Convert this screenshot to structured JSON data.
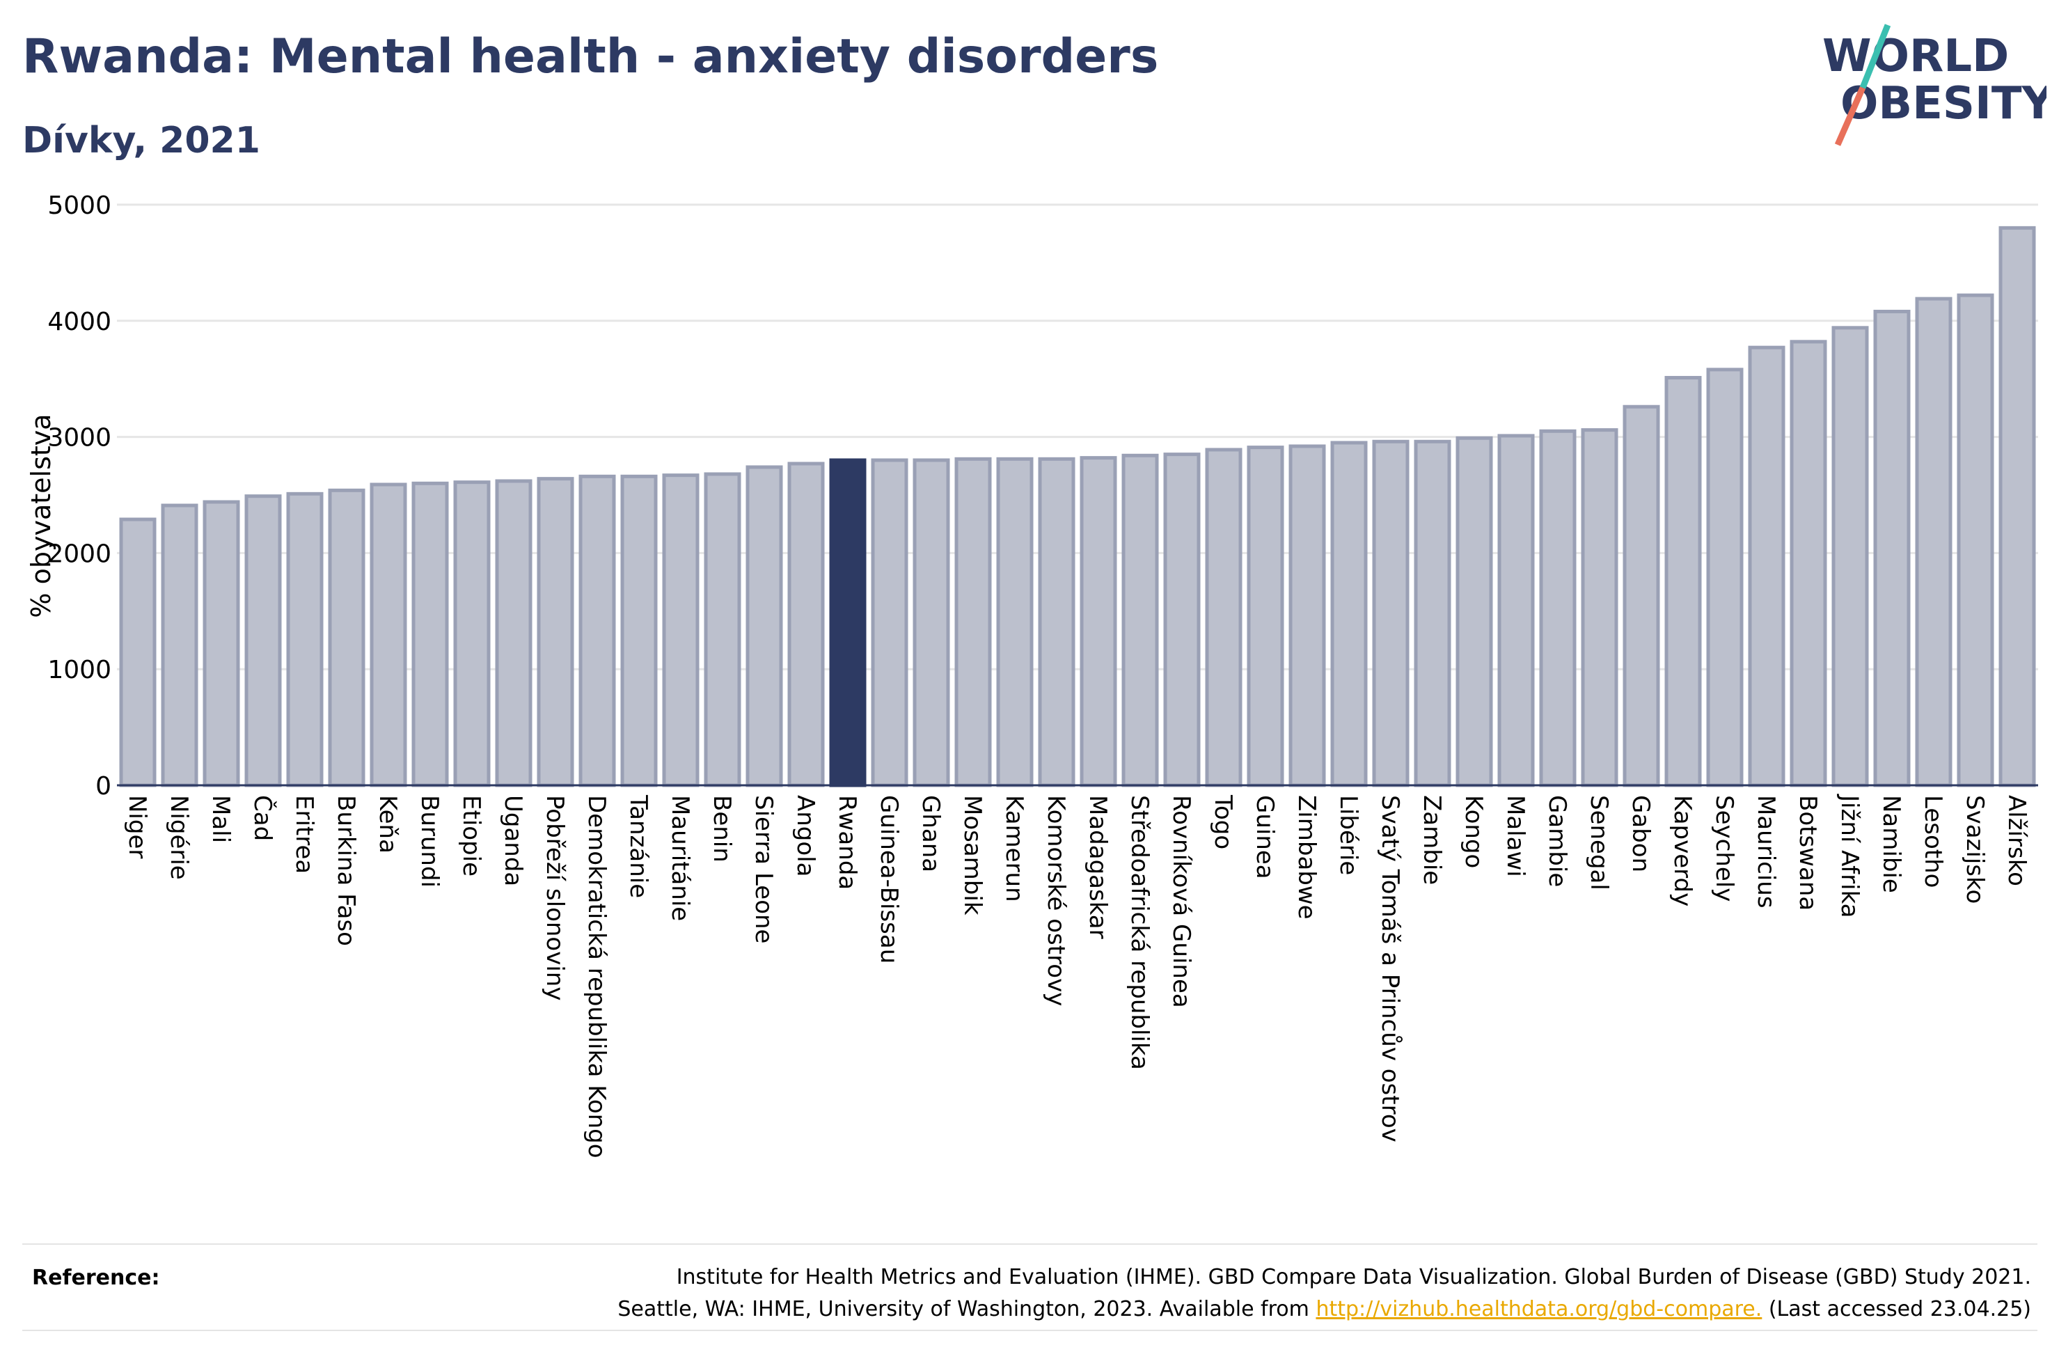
{
  "title": "Rwanda: Mental health - anxiety disorders",
  "subtitle": "Dívky, 2021",
  "logo": {
    "line1": "WORLD",
    "line2": "OBESITY"
  },
  "reference": {
    "label": "Reference:",
    "line1": "Institute for Health Metrics and Evaluation (IHME). GBD Compare Data Visualization. Global Burden of Disease (GBD) Study 2021.",
    "line2_prefix": "Seattle, WA: IHME, University of Washington, 2023. Available from",
    "link": "http://vizhub.healthdata.org/gbd-compare.",
    "line2_suffix": "(Last accessed 23.04.25)"
  },
  "colors": {
    "bar": "#bcc0cd",
    "bar_border": "#9aa0b5",
    "highlight": "#2d3a63",
    "title": "#2d3a63",
    "link": "#e9a800",
    "logo_teal": "#3bbfb0",
    "logo_red": "#e8705a"
  },
  "chart_data": {
    "type": "bar",
    "title": "Rwanda: Mental health - anxiety disorders",
    "subtitle": "Dívky, 2021",
    "ylabel": "% obyvatelstva",
    "xlabel": "",
    "ylim": [
      0,
      5000
    ],
    "yticks": [
      0,
      1000,
      2000,
      3000,
      4000,
      5000
    ],
    "grid": true,
    "highlight": "Rwanda",
    "categories": [
      "Niger",
      "Nigérie",
      "Mali",
      "Čad",
      "Eritrea",
      "Burkina Faso",
      "Keňa",
      "Burundi",
      "Etiopie",
      "Uganda",
      "Pobřeží slonoviny",
      "Demokratická republika Kongo",
      "Tanzánie",
      "Mauritánie",
      "Benin",
      "Sierra Leone",
      "Angola",
      "Rwanda",
      "Guinea-Bissau",
      "Ghana",
      "Mosambik",
      "Kamerun",
      "Komorské ostrovy",
      "Madagaskar",
      "Středoafrická republika",
      "Rovníková Guinea",
      "Togo",
      "Guinea",
      "Zimbabwe",
      "Libérie",
      "Svatý Tomáš a Princův ostrov",
      "Zambie",
      "Kongo",
      "Malawi",
      "Gambie",
      "Senegal",
      "Gabon",
      "Kapverdy",
      "Seychely",
      "Mauricius",
      "Botswana",
      "Jižní Afrika",
      "Namibie",
      "Lesotho",
      "Svazijsko",
      "Alžírsko"
    ],
    "values": [
      2290,
      2410,
      2440,
      2490,
      2510,
      2540,
      2590,
      2600,
      2610,
      2620,
      2640,
      2660,
      2660,
      2670,
      2680,
      2740,
      2770,
      2800,
      2800,
      2800,
      2810,
      2810,
      2810,
      2820,
      2840,
      2850,
      2890,
      2910,
      2920,
      2950,
      2960,
      2960,
      2990,
      3010,
      3050,
      3060,
      3260,
      3510,
      3580,
      3770,
      3820,
      3940,
      4080,
      4190,
      4220,
      4800
    ]
  }
}
